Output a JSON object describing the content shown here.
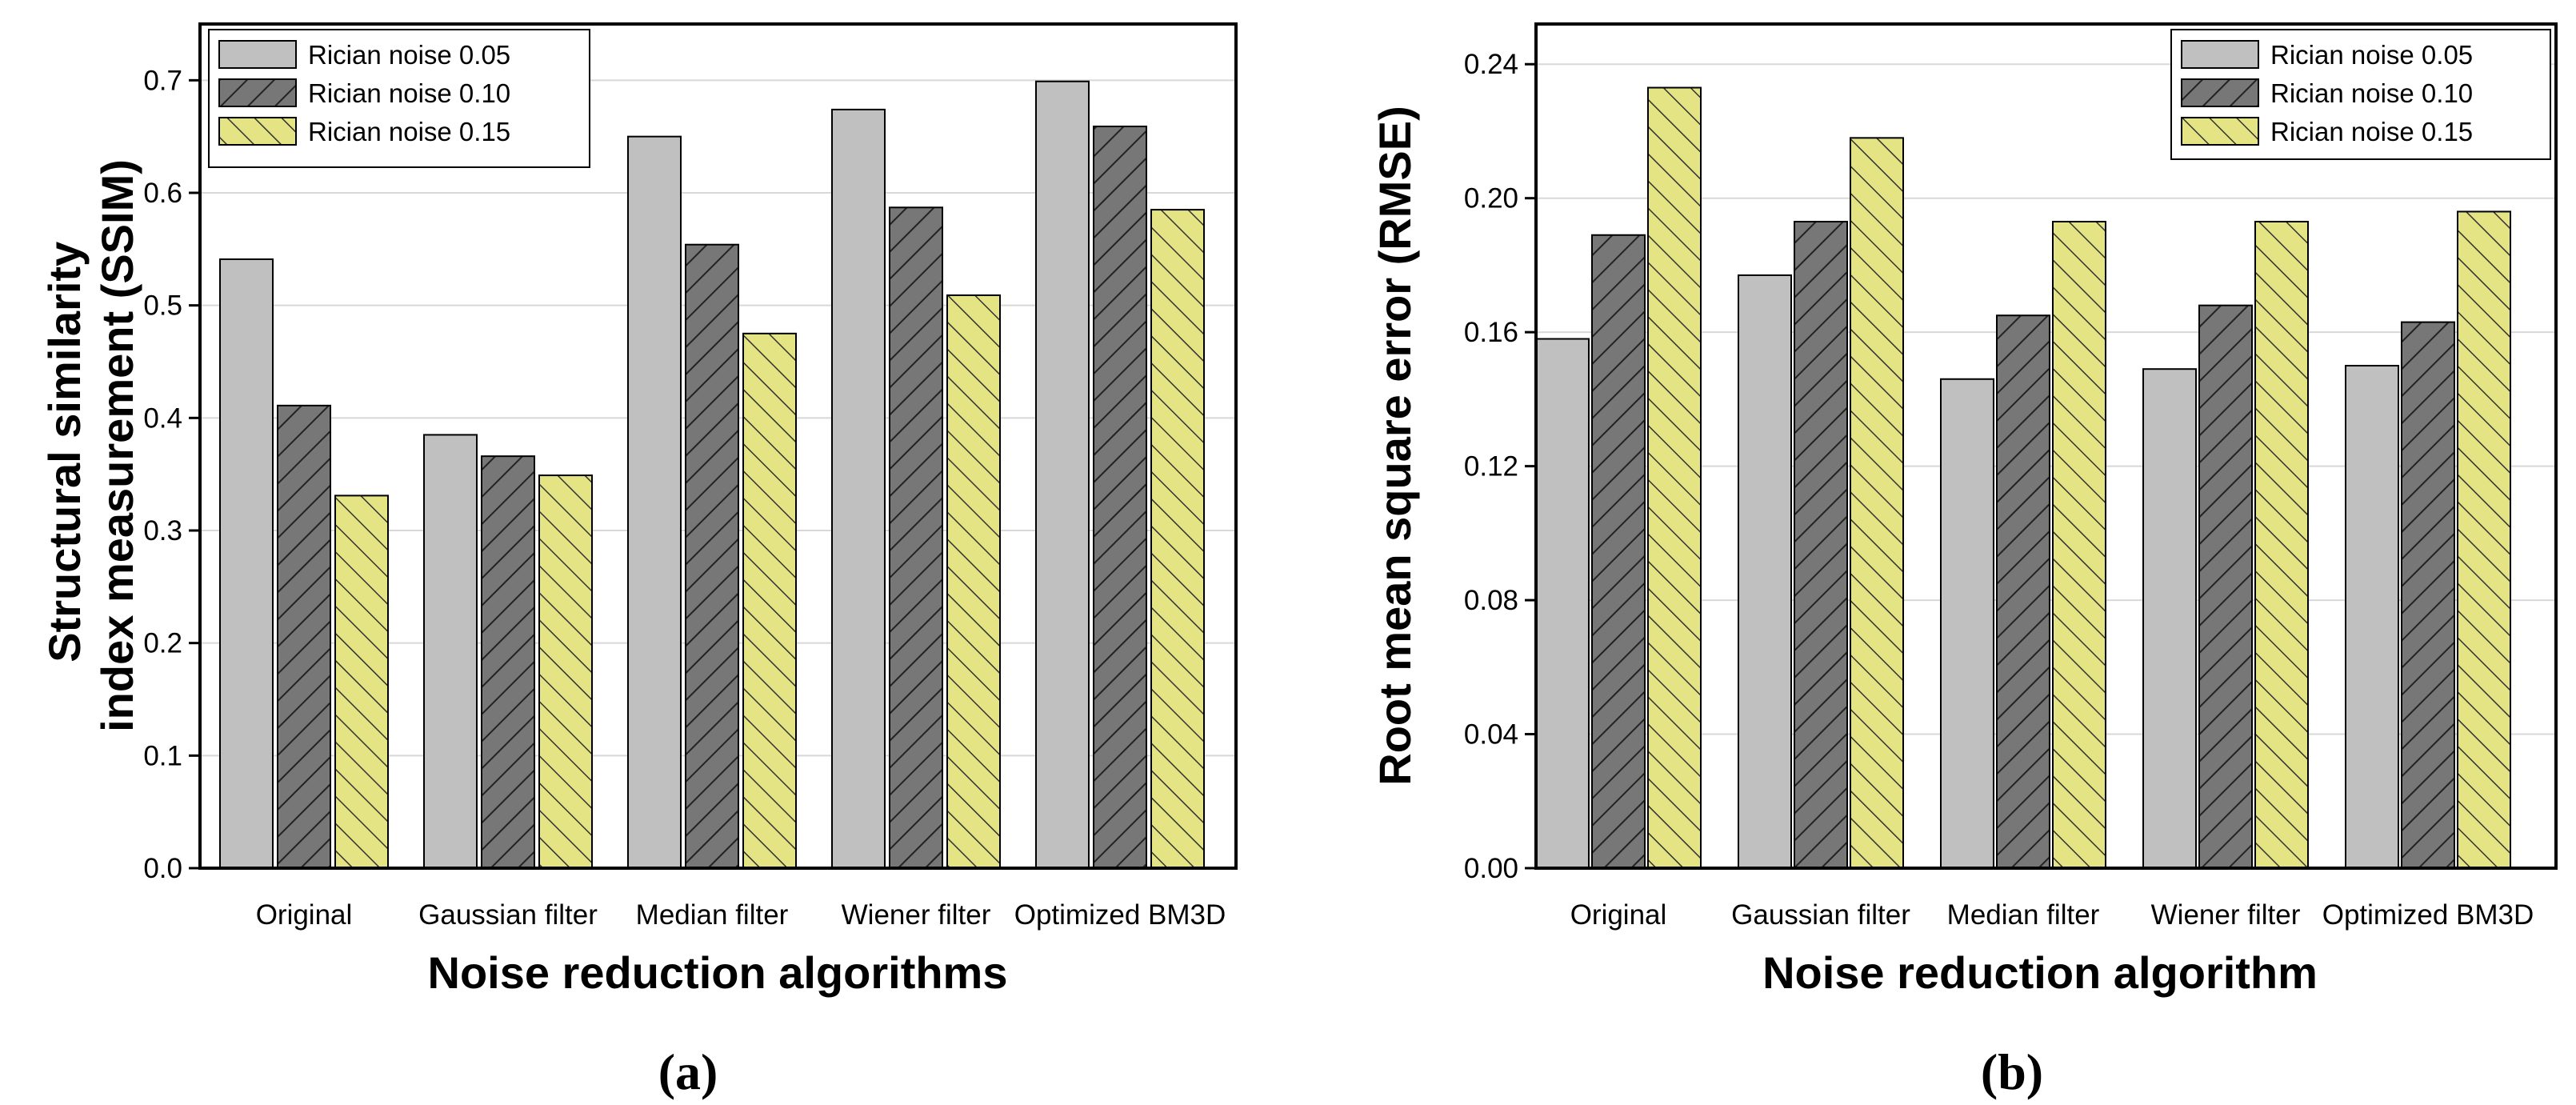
{
  "colors": {
    "s1": "#c0c0c0",
    "s2": "#777777",
    "s3": "#e4e484",
    "axis": "#000000",
    "grid": "#d8d8d8"
  },
  "chart_data": [
    {
      "type": "bar",
      "panel_label": "(a)",
      "categories": [
        "Original",
        "Gaussian filter",
        "Median filter",
        "Wiener filter",
        "Optimized BM3D"
      ],
      "series": [
        {
          "name": "Rician noise 0.05",
          "values": [
            0.541,
            0.385,
            0.65,
            0.674,
            0.699
          ]
        },
        {
          "name": "Rician noise 0.10",
          "values": [
            0.411,
            0.366,
            0.554,
            0.587,
            0.659
          ]
        },
        {
          "name": "Rician noise 0.15",
          "values": [
            0.331,
            0.349,
            0.475,
            0.509,
            0.585
          ]
        }
      ],
      "xlabel": "Noise reduction algorithms",
      "ylabel_lines": [
        "Structural similarity",
        "index measurement (SSIM)"
      ],
      "ylim": [
        0,
        0.75
      ],
      "yticks": [
        "0.0",
        "0.1",
        "0.2",
        "0.3",
        "0.4",
        "0.5",
        "0.6",
        "0.7"
      ],
      "ytick_values": [
        0,
        0.1,
        0.2,
        0.3,
        0.4,
        0.5,
        0.6,
        0.7
      ],
      "grid": true,
      "legend_position": "top-left"
    },
    {
      "type": "bar",
      "panel_label": "(b)",
      "categories": [
        "Original",
        "Gaussian filter",
        "Median filter",
        "Wiener filter",
        "Optimized BM3D"
      ],
      "series": [
        {
          "name": "Rician noise 0.05",
          "values": [
            0.158,
            0.177,
            0.146,
            0.149,
            0.15
          ]
        },
        {
          "name": "Rician noise 0.10",
          "values": [
            0.189,
            0.193,
            0.165,
            0.168,
            0.163
          ]
        },
        {
          "name": "Rician noise 0.15",
          "values": [
            0.233,
            0.218,
            0.193,
            0.193,
            0.196
          ]
        }
      ],
      "xlabel": "Noise reduction algorithm",
      "ylabel_lines": [
        "Root mean square error (RMSE)"
      ],
      "ylim": [
        0,
        0.252
      ],
      "yticks": [
        "0.00",
        "0.04",
        "0.08",
        "0.12",
        "0.16",
        "0.20",
        "0.24"
      ],
      "ytick_values": [
        0,
        0.04,
        0.08,
        0.12,
        0.16,
        0.2,
        0.24
      ],
      "grid": true,
      "legend_position": "top-right"
    }
  ]
}
